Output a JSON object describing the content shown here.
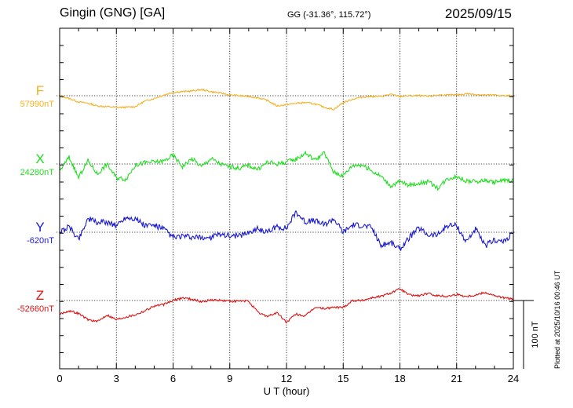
{
  "header": {
    "station": "Gingin (GNG)  [GA]",
    "coords": "GG (-31.36°, 115.72°)",
    "date": "2025/09/15"
  },
  "footer": {
    "plotted": "Plotted at 2025/10/16 00:46 UT"
  },
  "chart_data": {
    "type": "line",
    "xlabel": "U T (hour)",
    "xlim": [
      0,
      24
    ],
    "xticks": [
      "0",
      "3",
      "6",
      "9",
      "12",
      "15",
      "18",
      "21",
      "24"
    ],
    "scale_bar_label": "100 nT",
    "scale_bar_nT": 100,
    "grid": "dotted baselines per channel, dotted vertical lines every 3 hours",
    "series": [
      {
        "name": "F",
        "baseline_label": "57990nT",
        "baseline_nT": 57990,
        "color": "#f5b021",
        "x": [
          0,
          0.5,
          1,
          1.5,
          2,
          2.5,
          3,
          3.5,
          4,
          4.5,
          5,
          5.5,
          6,
          6.5,
          7,
          7.5,
          8,
          8.5,
          9,
          9.5,
          10,
          10.5,
          11,
          11.5,
          12,
          12.5,
          13,
          13.5,
          14,
          14.5,
          15,
          15.5,
          16,
          16.5,
          17,
          17.5,
          18,
          18.5,
          19,
          19.5,
          20,
          20.5,
          21,
          21.5,
          22,
          22.5,
          23,
          23.5,
          24
        ],
        "values": [
          57990,
          57986,
          57981,
          57979,
          57975,
          57974,
          57973,
          57973,
          57974,
          57982,
          57986,
          57991,
          57995,
          57996,
          57997,
          57999,
          57996,
          57994,
          57991,
          57990,
          57989,
          57987,
          57983,
          57975,
          57977,
          57979,
          57980,
          57978,
          57973,
          57970,
          57980,
          57985,
          57988,
          57989,
          57989,
          57992,
          57989,
          57990,
          57990,
          57989,
          57991,
          57991,
          57991,
          57993,
          57992,
          57991,
          57991,
          57990,
          57990
        ]
      },
      {
        "name": "X",
        "baseline_label": "24280nT",
        "baseline_nT": 24280,
        "color": "#22dd22",
        "x": [
          0,
          0.5,
          1,
          1.5,
          2,
          2.5,
          3,
          3.5,
          4,
          4.5,
          5,
          5.5,
          6,
          6.5,
          7,
          7.5,
          8,
          8.5,
          9,
          9.5,
          10,
          10.5,
          11,
          11.5,
          12,
          12.5,
          13,
          13.5,
          14,
          14.5,
          15,
          15.5,
          16,
          16.5,
          17,
          17.5,
          18,
          18.5,
          19,
          19.5,
          20,
          20.5,
          21,
          21.5,
          22,
          22.5,
          23,
          23.5,
          24
        ],
        "values": [
          24270,
          24290,
          24260,
          24285,
          24265,
          24280,
          24260,
          24258,
          24278,
          24282,
          24283,
          24284,
          24293,
          24276,
          24288,
          24276,
          24288,
          24280,
          24276,
          24274,
          24278,
          24272,
          24283,
          24280,
          24283,
          24287,
          24296,
          24286,
          24296,
          24268,
          24263,
          24278,
          24279,
          24270,
          24262,
          24248,
          24254,
          24249,
          24252,
          24254,
          24245,
          24258,
          24262,
          24255,
          24254,
          24256,
          24253,
          24256,
          24256
        ]
      },
      {
        "name": "Y",
        "baseline_label": "-620nT",
        "baseline_nT": -620,
        "color": "#1a1acc",
        "x": [
          0,
          0.5,
          1,
          1.5,
          2,
          2.5,
          3,
          3.5,
          4,
          4.5,
          5,
          5.5,
          6,
          6.5,
          7,
          7.5,
          8,
          8.5,
          9,
          9.5,
          10,
          10.5,
          11,
          11.5,
          12,
          12.5,
          13,
          13.5,
          14,
          14.5,
          15,
          15.5,
          16,
          16.5,
          17,
          17.5,
          18,
          18.5,
          19,
          19.5,
          20,
          20.5,
          21,
          21.5,
          22,
          22.5,
          23,
          23.5,
          24
        ],
        "values": [
          -620,
          -612,
          -630,
          -600,
          -606,
          -605,
          -610,
          -598,
          -600,
          -610,
          -610,
          -615,
          -628,
          -626,
          -628,
          -628,
          -628,
          -622,
          -625,
          -625,
          -620,
          -615,
          -620,
          -612,
          -614,
          -590,
          -605,
          -603,
          -609,
          -600,
          -620,
          -609,
          -610,
          -613,
          -640,
          -635,
          -645,
          -628,
          -614,
          -624,
          -624,
          -610,
          -610,
          -634,
          -615,
          -640,
          -631,
          -634,
          -620
        ]
      },
      {
        "name": "Z",
        "baseline_label": "-52660nT",
        "baseline_nT": -52660,
        "color": "#dd1111",
        "x": [
          0,
          0.5,
          1,
          1.5,
          2,
          2.5,
          3,
          3.5,
          4,
          4.5,
          5,
          5.5,
          6,
          6.5,
          7,
          7.5,
          8,
          8.5,
          9,
          9.5,
          10,
          10.5,
          11,
          11.5,
          12,
          12.5,
          13,
          13.5,
          14,
          14.5,
          15,
          15.5,
          16,
          16.5,
          17,
          17.5,
          18,
          18.5,
          19,
          19.5,
          20,
          20.5,
          21,
          21.5,
          22,
          22.5,
          23,
          23.5,
          24
        ],
        "values": [
          -52680,
          -52675,
          -52679,
          -52688,
          -52691,
          -52681,
          -52688,
          -52684,
          -52681,
          -52675,
          -52668,
          -52666,
          -52660,
          -52656,
          -52658,
          -52662,
          -52659,
          -52660,
          -52661,
          -52661,
          -52661,
          -52678,
          -52683,
          -52678,
          -52692,
          -52680,
          -52683,
          -52670,
          -52672,
          -52670,
          -52670,
          -52660,
          -52660,
          -52656,
          -52654,
          -52649,
          -52643,
          -52652,
          -52653,
          -52650,
          -52653,
          -52654,
          -52651,
          -52654,
          -52652,
          -52648,
          -52653,
          -52656,
          -52658
        ]
      }
    ]
  }
}
